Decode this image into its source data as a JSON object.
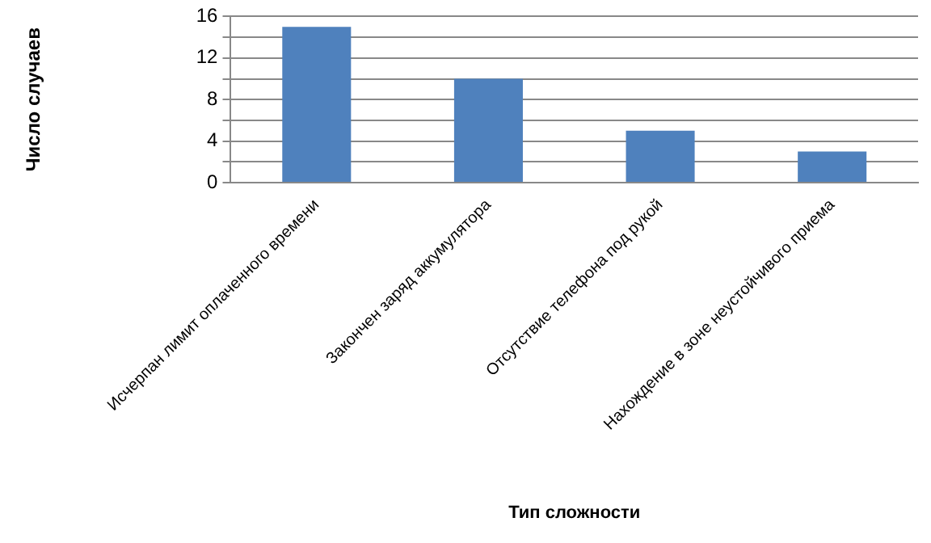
{
  "chart_data": {
    "type": "bar",
    "xlabel": "Тип сложности",
    "ylabel": "Число случаев",
    "categories": [
      "Исчерпан лимит оплаченного времени",
      "Закончен заряд аккумулятора",
      "Отсутствие телефона под рукой",
      "Нахождение в зоне неустойчивого приема"
    ],
    "values": [
      15,
      10,
      5,
      3
    ],
    "color": "#4f81bd",
    "ylim": [
      0,
      16
    ],
    "yticks": [
      0,
      {
        "value": 2,
        "label": null
      },
      4,
      {
        "value": 6,
        "label": null
      },
      8,
      {
        "value": 10,
        "label": null
      },
      12,
      {
        "value": 14,
        "label": null
      },
      16
    ],
    "grid": "y",
    "legend": false
  }
}
